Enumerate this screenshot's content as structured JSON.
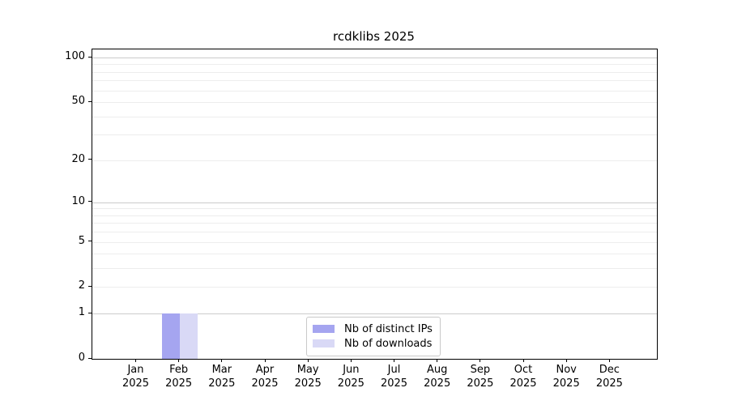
{
  "chart_data": {
    "type": "bar",
    "title": "rcdklibs 2025",
    "xlabel": "",
    "ylabel": "",
    "categories": [
      "Jan 2025",
      "Feb 2025",
      "Mar 2025",
      "Apr 2025",
      "May 2025",
      "Jun 2025",
      "Jul 2025",
      "Aug 2025",
      "Sep 2025",
      "Oct 2025",
      "Nov 2025",
      "Dec 2025"
    ],
    "series": [
      {
        "name": "Nb of distinct IPs",
        "color": "#a5a5f0",
        "values": [
          0,
          1,
          0,
          0,
          0,
          0,
          0,
          0,
          0,
          0,
          0,
          0
        ]
      },
      {
        "name": "Nb of downloads",
        "color": "#d9d9f6",
        "values": [
          0,
          1,
          0,
          0,
          0,
          0,
          0,
          0,
          0,
          0,
          0,
          0
        ]
      }
    ],
    "y_axis": {
      "scale": "log1p",
      "tick_values": [
        0,
        1,
        2,
        5,
        10,
        20,
        50,
        100
      ],
      "ylim": [
        0,
        113
      ],
      "major_grid": [
        1,
        10,
        100
      ],
      "minor_grid": [
        2,
        3,
        4,
        5,
        6,
        7,
        8,
        9,
        20,
        30,
        40,
        50,
        60,
        70,
        80,
        90
      ]
    },
    "legend": {
      "position": "lower center"
    },
    "grid": true,
    "background": "#ffffff",
    "axis_color": "#000000"
  }
}
